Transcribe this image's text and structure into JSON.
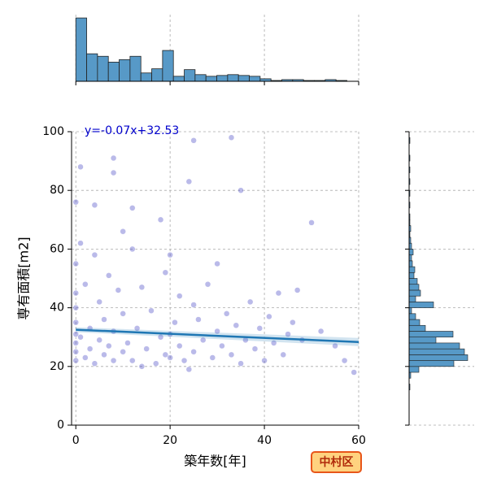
{
  "chart_data": [
    {
      "type": "scatter",
      "xlabel": "築年数[年]",
      "ylabel": "専有面積[m2]",
      "annotation": "y=-0.07x+32.53",
      "badge": "中村区",
      "color": "#3a3ac0",
      "x": [
        0,
        0,
        0,
        0,
        0,
        0,
        0,
        0,
        0,
        1,
        1,
        2,
        2,
        3,
        3,
        4,
        4,
        5,
        5,
        6,
        6,
        7,
        7,
        8,
        8,
        8,
        9,
        10,
        10,
        11,
        12,
        12,
        13,
        14,
        14,
        15,
        16,
        17,
        18,
        18,
        19,
        20,
        20,
        20,
        21,
        22,
        22,
        23,
        24,
        25,
        25,
        26,
        27,
        28,
        29,
        30,
        30,
        31,
        32,
        33,
        34,
        35,
        35,
        36,
        37,
        38,
        39,
        40,
        41,
        42,
        43,
        44,
        45,
        46,
        48,
        50,
        52,
        55,
        57,
        59,
        1,
        4,
        8,
        12,
        25,
        33,
        47,
        10,
        19,
        24
      ],
      "y": [
        22,
        25,
        28,
        31,
        35,
        40,
        45,
        55,
        76,
        62,
        30,
        23,
        48,
        33,
        26,
        21,
        58,
        29,
        42,
        24,
        36,
        27,
        51,
        91,
        32,
        22,
        46,
        25,
        38,
        28,
        22,
        60,
        33,
        20,
        47,
        26,
        39,
        21,
        30,
        70,
        24,
        23,
        31,
        58,
        35,
        27,
        44,
        22,
        83,
        25,
        97,
        36,
        29,
        48,
        23,
        32,
        55,
        27,
        38,
        24,
        34,
        21,
        80,
        29,
        42,
        26,
        33,
        22,
        37,
        28,
        45,
        24,
        31,
        35,
        29,
        69,
        32,
        27,
        22,
        18,
        88,
        75,
        86,
        74,
        41,
        98,
        46,
        66,
        52,
        19
      ],
      "regression": {
        "color": "#1f77b4",
        "x": [
          0,
          60
        ],
        "y": [
          32.53,
          28.33
        ]
      },
      "xlim": [
        -0.9,
        60
      ],
      "ylim": [
        0,
        100
      ],
      "xticks": [
        0,
        20,
        40,
        60
      ],
      "yticks": [
        0,
        20,
        40,
        60,
        80,
        100
      ],
      "grid": true
    },
    {
      "type": "histogram",
      "orientation": "vertical",
      "color": "#5799c7",
      "bins": [
        0,
        2.3,
        4.6,
        6.9,
        9.2,
        11.5,
        13.8,
        16.1,
        18.4,
        20.7,
        23,
        25.3,
        27.6,
        29.9,
        32.2,
        34.5,
        36.8,
        39.1,
        41.4,
        43.7,
        46,
        48.3,
        50.6,
        52.9,
        55.2,
        57.5,
        59.8
      ],
      "counts": [
        76,
        33,
        30,
        23,
        26,
        30,
        10,
        15,
        37,
        6,
        14,
        8,
        6,
        7,
        8,
        7,
        6,
        3,
        1,
        2,
        2,
        1,
        1,
        2,
        1,
        0
      ],
      "xlim": [
        -0.9,
        60
      ],
      "ylim": [
        0,
        80
      ],
      "xticks": [
        0,
        20,
        40,
        60
      ],
      "grid": true
    },
    {
      "type": "histogram",
      "orientation": "horizontal",
      "color": "#5799c7",
      "bins": [
        10,
        12,
        14,
        16,
        18,
        20,
        22,
        24,
        26,
        28,
        30,
        32,
        34,
        36,
        38,
        40,
        42,
        44,
        46,
        48,
        50,
        52,
        54,
        56,
        58,
        60,
        62,
        64,
        66,
        68,
        70,
        72,
        74,
        76,
        78,
        80,
        82,
        84,
        86,
        88,
        90,
        92,
        94,
        96,
        98,
        100
      ],
      "counts": [
        0,
        1,
        0,
        2,
        12,
        55,
        72,
        68,
        62,
        33,
        54,
        20,
        13,
        8,
        3,
        30,
        8,
        14,
        12,
        10,
        6,
        7,
        4,
        3,
        5,
        3,
        2,
        1,
        2,
        1,
        1,
        0,
        1,
        0,
        1,
        0,
        1,
        0,
        1,
        0,
        1,
        0,
        0,
        1,
        0
      ],
      "xlim": [
        0,
        80
      ],
      "ylim": [
        0,
        100
      ],
      "yticks": [
        0,
        20,
        40,
        60,
        80,
        100
      ],
      "grid": true
    }
  ]
}
